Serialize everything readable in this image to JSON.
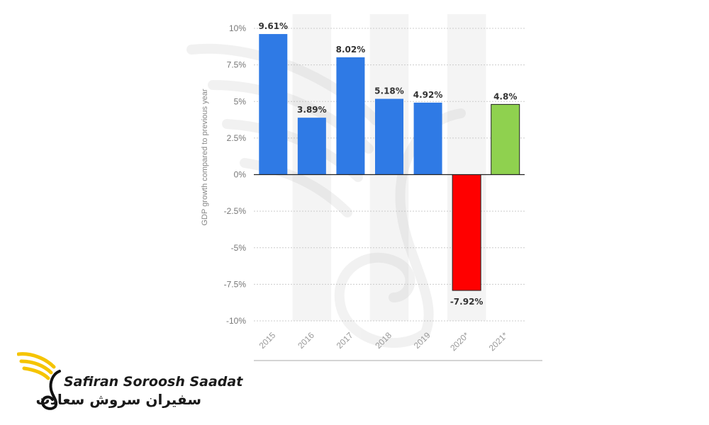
{
  "chart_data": {
    "type": "bar",
    "ylabel": "GDP growth compared to previous year",
    "categories": [
      "2015",
      "2016",
      "2017",
      "2018",
      "2019",
      "2020*",
      "2021*"
    ],
    "values": [
      9.61,
      3.89,
      8.02,
      5.18,
      4.92,
      -7.92,
      4.8
    ],
    "value_labels": [
      "9.61%",
      "3.89%",
      "8.02%",
      "5.18%",
      "4.92%",
      "-7.92%",
      "4.8%"
    ],
    "bar_colors": [
      "#2f7ae5",
      "#2f7ae5",
      "#2f7ae5",
      "#2f7ae5",
      "#2f7ae5",
      "#ff0000",
      "#8fd14f"
    ],
    "yticks": [
      10,
      7.5,
      5,
      2.5,
      0,
      -2.5,
      -5,
      -7.5,
      -10
    ],
    "ytick_labels": [
      "10%",
      "7.5%",
      "5%",
      "2.5%",
      "0%",
      "-2.5%",
      "-5%",
      "-7.5%",
      "-10%"
    ],
    "ylim": [
      -10,
      10
    ],
    "grid": true
  },
  "watermark": {
    "icon": "bird-logo-watermark-icon"
  },
  "brand": {
    "name": "Safiran Soroosh Saadat",
    "name_persian": "سفیران سروش سعادت",
    "logo_icon": "bird-logo-icon",
    "logo_color": "#f5c400"
  }
}
